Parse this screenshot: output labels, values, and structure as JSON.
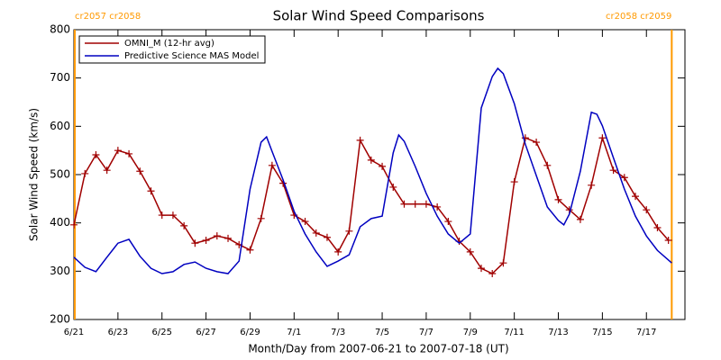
{
  "chart_data": {
    "type": "line",
    "title": "Solar Wind Speed Comparisons",
    "xlabel": "Month/Day from 2007-06-21 to 2007-07-18 (UT)",
    "ylabel": "Solar Wind Speed (km/s)",
    "xlim": [
      0,
      27.75
    ],
    "ylim": [
      200,
      800
    ],
    "yticks": [
      200,
      300,
      400,
      500,
      600,
      700,
      800
    ],
    "xticks": [
      {
        "value": 0,
        "label": "6/21"
      },
      {
        "value": 2,
        "label": "6/23"
      },
      {
        "value": 4,
        "label": "6/25"
      },
      {
        "value": 6,
        "label": "6/27"
      },
      {
        "value": 8,
        "label": "6/29"
      },
      {
        "value": 10,
        "label": "7/1"
      },
      {
        "value": 12,
        "label": "7/3"
      },
      {
        "value": 14,
        "label": "7/5"
      },
      {
        "value": 16,
        "label": "7/7"
      },
      {
        "value": 18,
        "label": "7/9"
      },
      {
        "value": 20,
        "label": "7/11"
      },
      {
        "value": 22,
        "label": "7/13"
      },
      {
        "value": 24,
        "label": "7/15"
      },
      {
        "value": 26,
        "label": "7/17"
      }
    ],
    "legend": "upper left",
    "annotations": [
      {
        "x": 0.04,
        "label": "cr2057 cr2058",
        "color": "#ff9900"
      },
      {
        "x": 27.15,
        "label": "cr2058 cr2059",
        "color": "#ff9900"
      }
    ],
    "series": [
      {
        "name": "OMNI_M (12-hr avg)",
        "color": "#a00000",
        "marker": "+",
        "x": [
          0,
          0.5,
          1,
          1.5,
          2,
          2.5,
          3,
          3.5,
          4,
          4.5,
          5,
          5.5,
          6,
          6.5,
          7,
          7.5,
          8,
          8.5,
          9,
          9.5,
          10,
          10.5,
          11,
          11.5,
          12,
          12.5,
          13,
          13.5,
          14,
          14.5,
          15,
          15.5,
          16,
          16.5,
          17,
          17.5,
          18,
          18.5,
          19,
          19.5,
          20,
          20.5,
          21,
          21.5,
          22,
          22.5,
          23,
          23.5,
          24,
          24.5,
          25,
          25.5,
          26,
          26.5,
          27
        ],
        "values": [
          396,
          502,
          541,
          509,
          550,
          543,
          507,
          466,
          416,
          416,
          394,
          358,
          364,
          373,
          368,
          355,
          344,
          409,
          519,
          482,
          416,
          403,
          379,
          370,
          340,
          383,
          571,
          530,
          517,
          474,
          439,
          439,
          439,
          433,
          403,
          362,
          340,
          306,
          295,
          317,
          485,
          576,
          567,
          519,
          448,
          427,
          407,
          478,
          576,
          509,
          494,
          455,
          427,
          390,
          364
        ]
      },
      {
        "name": "Predictive Science MAS Model",
        "color": "#0000c0",
        "x": [
          0,
          0.5,
          1,
          1.5,
          2,
          2.5,
          3,
          3.5,
          4,
          4.5,
          5,
          5.5,
          6,
          6.5,
          7,
          7.5,
          8,
          8.5,
          8.75,
          9,
          9.5,
          10,
          10.5,
          11,
          11.5,
          12,
          12.5,
          13,
          13.5,
          14,
          14.5,
          14.75,
          15,
          15.5,
          16,
          16.5,
          17,
          17.5,
          18,
          18.5,
          19,
          19.25,
          19.5,
          20,
          20.5,
          21,
          21.5,
          22,
          22.25,
          22.5,
          23,
          23.5,
          23.75,
          24,
          24.5,
          25,
          25.5,
          26,
          26.5,
          27,
          27.15
        ],
        "values": [
          329,
          308,
          299,
          329,
          358,
          366,
          331,
          306,
          295,
          299,
          314,
          319,
          306,
          299,
          295,
          321,
          470,
          567,
          578,
          548,
          489,
          424,
          377,
          340,
          310,
          321,
          334,
          392,
          409,
          414,
          545,
          582,
          569,
          517,
          461,
          414,
          377,
          358,
          377,
          638,
          703,
          720,
          709,
          647,
          563,
          498,
          433,
          405,
          396,
          418,
          507,
          629,
          625,
          601,
          535,
          470,
          414,
          373,
          343,
          323,
          317
        ]
      }
    ]
  }
}
